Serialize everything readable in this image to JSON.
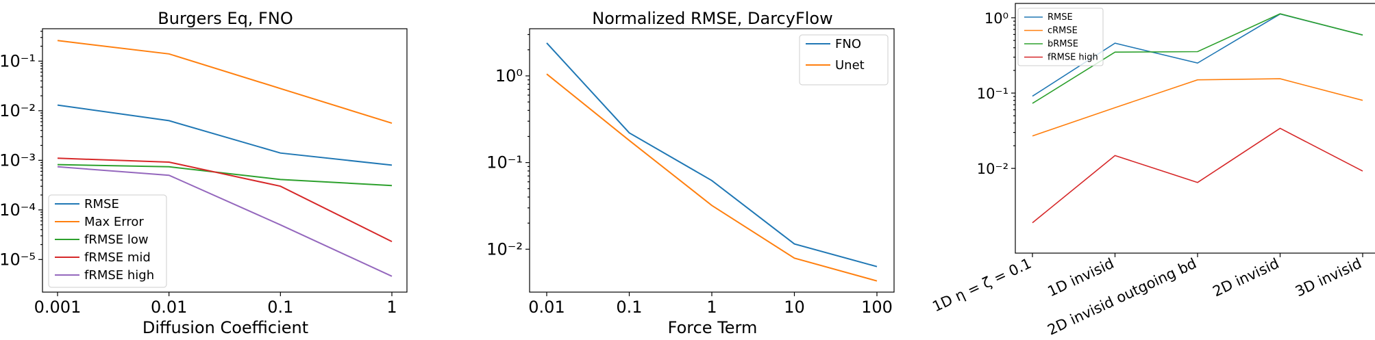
{
  "chart_data": [
    {
      "type": "line",
      "title": "Burgers Eq, FNO",
      "xlabel": "Diffusion Coefficient",
      "ylabel": "",
      "x_scale": "log",
      "y_scale": "log",
      "categories": [
        "0.001",
        "0.01",
        "0.1",
        "1"
      ],
      "y_ticks": [
        "10⁻⁵",
        "10⁻⁴",
        "10⁻³",
        "10⁻²",
        "10⁻¹"
      ],
      "ylim": [
        2.2e-06,
        0.45
      ],
      "legend_position": "lower-left",
      "series": [
        {
          "name": "RMSE",
          "color": "#1f77b4",
          "values": [
            0.013,
            0.0063,
            0.0014,
            0.0008
          ]
        },
        {
          "name": "Max Error",
          "color": "#ff7f0e",
          "values": [
            0.26,
            0.14,
            0.028,
            0.0056
          ]
        },
        {
          "name": "fRMSE low",
          "color": "#2ca02c",
          "values": [
            0.00082,
            0.00074,
            0.00041,
            0.00031
          ]
        },
        {
          "name": "fRMSE mid",
          "color": "#d62728",
          "values": [
            0.0011,
            0.00092,
            0.0003,
            2.3e-05
          ]
        },
        {
          "name": "fRMSE high",
          "color": "#9467bd",
          "values": [
            0.00074,
            0.0005,
            5e-05,
            4.6e-06
          ]
        }
      ]
    },
    {
      "type": "line",
      "title": "Normalized RMSE, DarcyFlow",
      "xlabel": "Force Term",
      "ylabel": "",
      "x_scale": "log",
      "y_scale": "log",
      "categories": [
        "0.01",
        "0.1",
        "1",
        "10",
        "100"
      ],
      "y_ticks": [
        "10⁻²",
        "10⁻¹",
        "10⁰"
      ],
      "ylim": [
        0.0032,
        3.5
      ],
      "legend_position": "upper-right",
      "series": [
        {
          "name": "FNO",
          "color": "#1f77b4",
          "values": [
            2.4,
            0.22,
            0.062,
            0.0115,
            0.0063
          ]
        },
        {
          "name": "Unet",
          "color": "#ff7f0e",
          "values": [
            1.05,
            0.18,
            0.032,
            0.0079,
            0.0043
          ]
        }
      ]
    },
    {
      "type": "line",
      "title": "",
      "xlabel": "",
      "ylabel": "",
      "y_scale": "log",
      "categories": [
        "1D η = ζ = 0.1",
        "1D invisid",
        "2D invisid outgoing bd",
        "2D invisid",
        "3D invisid"
      ],
      "y_ticks": [
        "10⁻²",
        "10⁻¹",
        "10⁰"
      ],
      "ylim": [
        0.00075,
        1.55
      ],
      "legend_position": "upper-left",
      "series": [
        {
          "name": "RMSE",
          "color": "#1f77b4",
          "values": [
            0.091,
            0.46,
            0.25,
            1.12,
            0.59
          ]
        },
        {
          "name": "cRMSE",
          "color": "#ff7f0e",
          "values": [
            0.027,
            0.064,
            0.15,
            0.155,
            0.08
          ]
        },
        {
          "name": "bRMSE",
          "color": "#2ca02c",
          "values": [
            0.073,
            0.35,
            0.355,
            1.13,
            0.59
          ]
        },
        {
          "name": "fRMSE high",
          "color": "#d62728",
          "values": [
            0.0019,
            0.0148,
            0.0065,
            0.034,
            0.0092
          ]
        }
      ]
    }
  ]
}
